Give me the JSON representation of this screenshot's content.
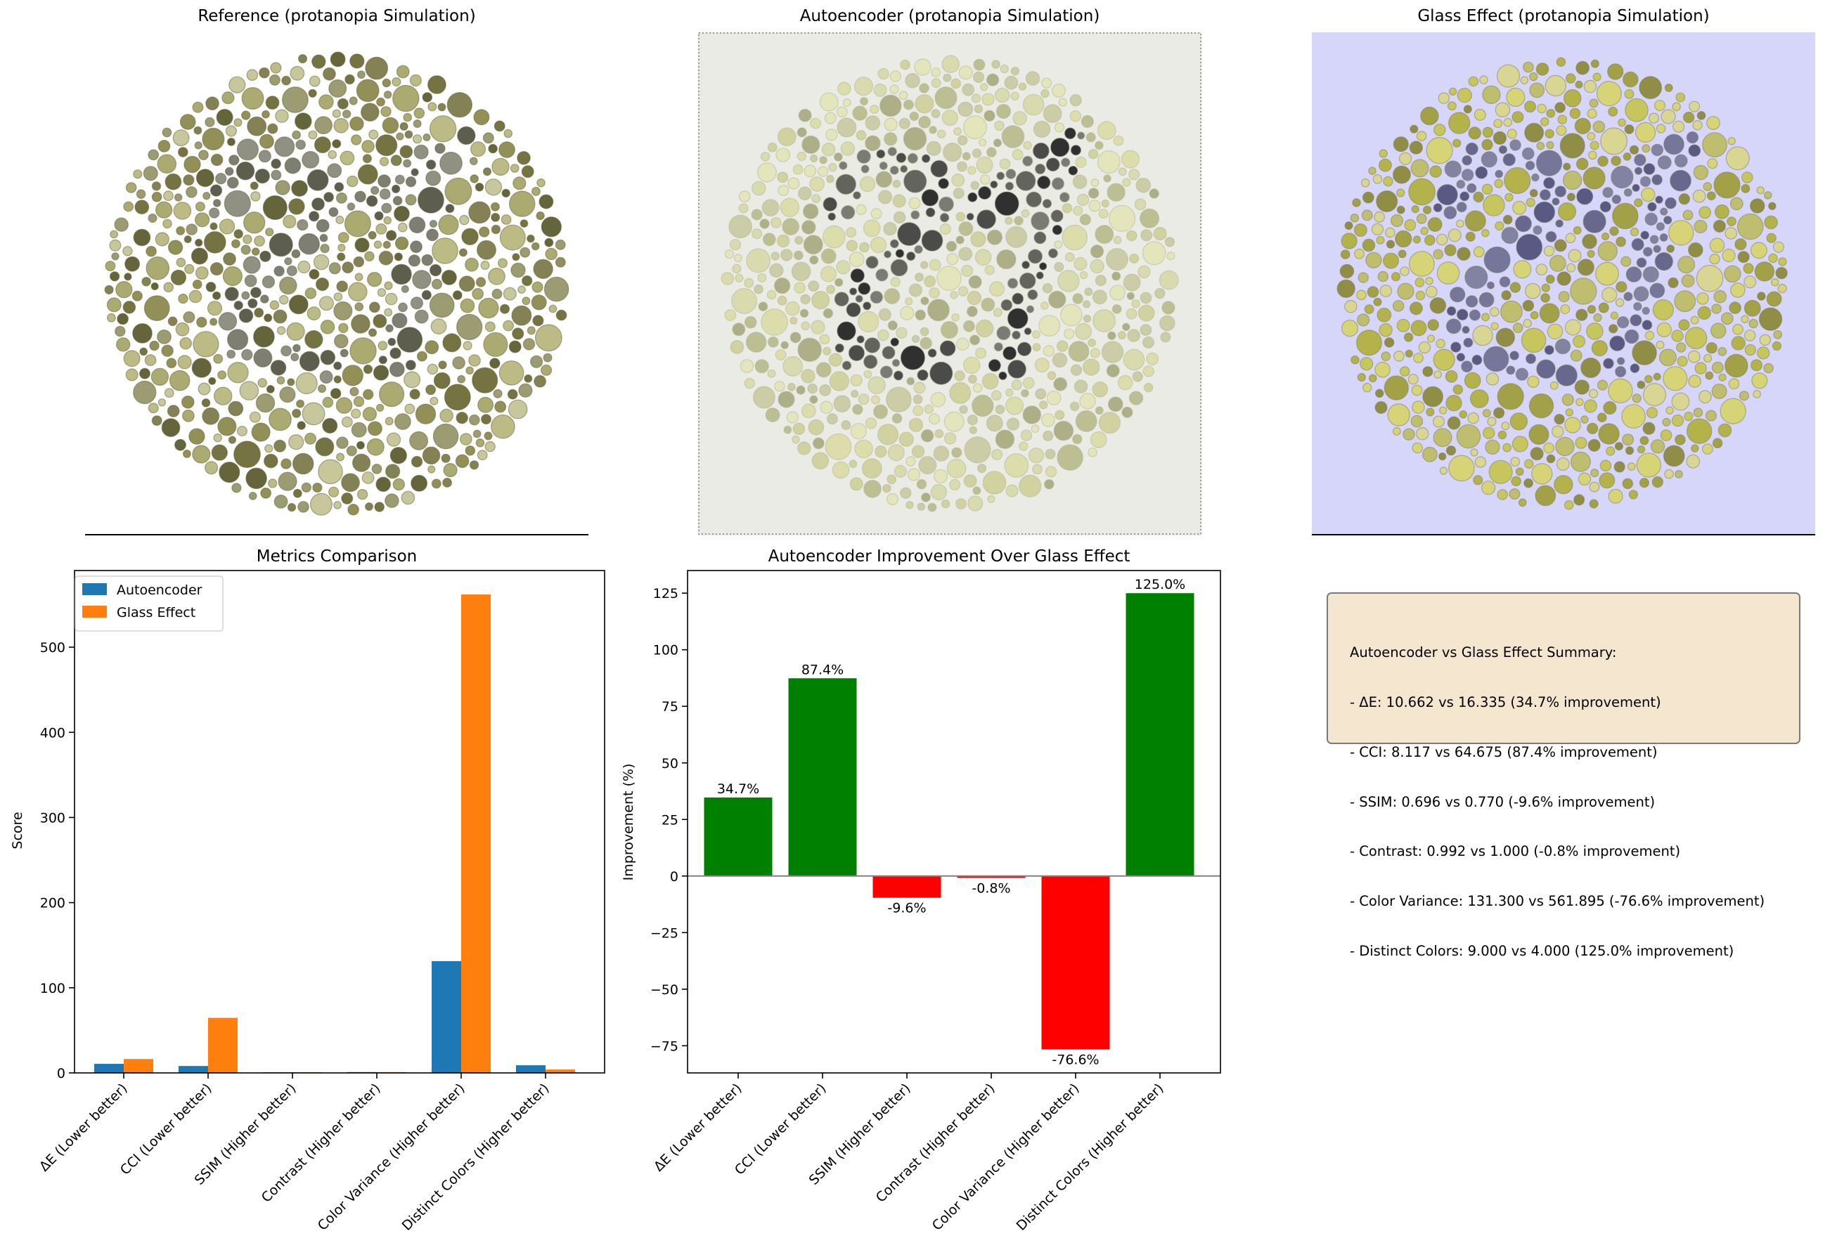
{
  "panels": {
    "reference_title": "Reference (protanopia Simulation)",
    "autoencoder_title": "Autoencoder (protanopia Simulation)",
    "glass_title": "Glass Effect (protanopia Simulation)",
    "metrics_title": "Metrics Comparison",
    "improvement_title": "Autoencoder Improvement Over Glass Effect"
  },
  "colors": {
    "autoencoder": "#1f77b4",
    "glass": "#ff7f0e",
    "positive": "#008000",
    "negative": "#ff0000",
    "summary_bg": "#f5e6cf",
    "glass_bg": "#d6d6fb",
    "autoencoder_bg": "#ebebe6"
  },
  "plates": {
    "reference": {
      "number": "",
      "dot_palette": [
        "#8c8a4e",
        "#a7a568",
        "#6e6b38",
        "#b9b77e",
        "#7d7b4b",
        "#5e5c30",
        "#98966a",
        "#c5c396"
      ],
      "figure_palette": [
        "#555546",
        "#77776a",
        "#8a8a7c"
      ]
    },
    "autoencoder": {
      "number": "21",
      "dot_palette": [
        "#dcdca4",
        "#e4e4b6",
        "#cfcf98",
        "#b9b989",
        "#a7a77c",
        "#d8d8a8",
        "#c9c9a0"
      ],
      "figure_palette": [
        "#1c1c1c",
        "#3a3a38",
        "#555550",
        "#6f6f68"
      ]
    },
    "glass": {
      "number": "21",
      "dot_palette": [
        "#c6c450",
        "#d6d46a",
        "#b1af3c",
        "#9e9c38",
        "#d9d68a",
        "#8a8836",
        "#bdbb62"
      ],
      "figure_palette": [
        "#4e4e7a",
        "#5e5e86",
        "#6e6e92",
        "#7b7b9a"
      ]
    }
  },
  "chart_data": [
    {
      "type": "bar",
      "title": "Metrics Comparison",
      "xlabel": "",
      "ylabel": "Score",
      "categories": [
        "ΔE (Lower better)",
        "CCI (Lower better)",
        "SSIM (Higher better)",
        "Contrast (Higher better)",
        "Color Variance (Higher better)",
        "Distinct Colors (Higher better)"
      ],
      "series": [
        {
          "name": "Autoencoder",
          "values": [
            10.662,
            8.117,
            0.696,
            0.992,
            131.3,
            9.0
          ]
        },
        {
          "name": "Glass Effect",
          "values": [
            16.335,
            64.675,
            0.77,
            1.0,
            561.895,
            4.0
          ]
        }
      ],
      "ylim": [
        0,
        590
      ],
      "yticks": [
        0,
        100,
        200,
        300,
        400,
        500
      ],
      "legend": "upper-left",
      "grid": false
    },
    {
      "type": "bar",
      "title": "Autoencoder Improvement Over Glass Effect",
      "xlabel": "",
      "ylabel": "Improvement (%)",
      "categories": [
        "ΔE (Lower better)",
        "CCI (Lower better)",
        "SSIM (Higher better)",
        "Contrast (Higher better)",
        "Color Variance (Higher better)",
        "Distinct Colors (Higher better)"
      ],
      "values": [
        34.7,
        87.4,
        -9.6,
        -0.8,
        -76.6,
        125.0
      ],
      "data_labels": [
        "34.7%",
        "87.4%",
        "-9.6%",
        "-0.8%",
        "-76.6%",
        "125.0%"
      ],
      "ylim": [
        -87,
        135
      ],
      "yticks": [
        -75,
        -50,
        -25,
        0,
        25,
        50,
        75,
        100,
        125
      ],
      "ytick_labels": [
        "−75",
        "−50",
        "−25",
        "0",
        "25",
        "50",
        "75",
        "100",
        "125"
      ],
      "grid": false
    }
  ],
  "summary": {
    "lines": [
      "Autoencoder vs Glass Effect Summary:",
      "- ΔE: 10.662 vs 16.335 (34.7% improvement)",
      "- CCI: 8.117 vs 64.675 (87.4% improvement)",
      "- SSIM: 0.696 vs 0.770 (-9.6% improvement)",
      "- Contrast: 0.992 vs 1.000 (-0.8% improvement)",
      "- Color Variance: 131.300 vs 561.895 (-76.6% improvement)",
      "- Distinct Colors: 9.000 vs 4.000 (125.0% improvement)"
    ]
  }
}
